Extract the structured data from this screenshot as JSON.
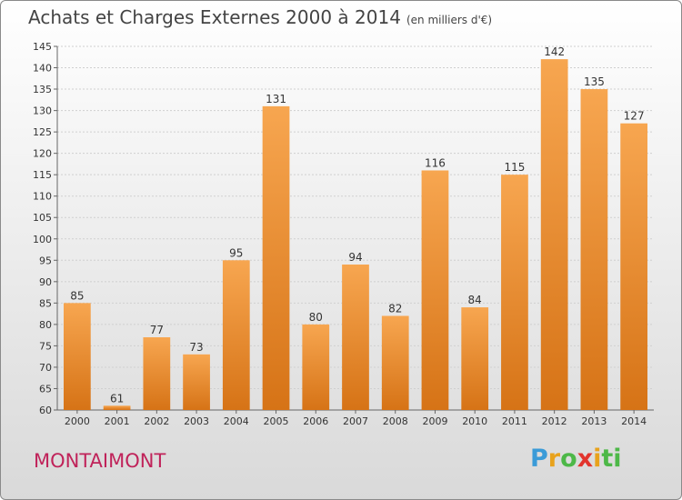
{
  "title": "Achats et Charges Externes 2000 à 2014",
  "unit_label": "(en milliers d'€)",
  "city": "MONTAIMONT",
  "logo": [
    "P",
    "r",
    "o",
    "x",
    "i",
    "ti"
  ],
  "colors": {
    "bar_light": "#f7a650",
    "bar_dark": "#d67316",
    "axis": "#666666",
    "grid": "#d0d0d0"
  },
  "chart_data": {
    "type": "bar",
    "categories": [
      "2000",
      "2001",
      "2002",
      "2003",
      "2004",
      "2005",
      "2006",
      "2007",
      "2008",
      "2009",
      "2010",
      "2011",
      "2012",
      "2013",
      "2014"
    ],
    "values": [
      85,
      61,
      77,
      73,
      95,
      131,
      80,
      94,
      82,
      116,
      84,
      115,
      142,
      135,
      127
    ],
    "ylim": [
      60,
      145
    ],
    "yticks": [
      60,
      65,
      70,
      75,
      80,
      85,
      90,
      95,
      100,
      105,
      110,
      115,
      120,
      125,
      130,
      135,
      140,
      145
    ],
    "grid": true,
    "data_labels": true
  }
}
